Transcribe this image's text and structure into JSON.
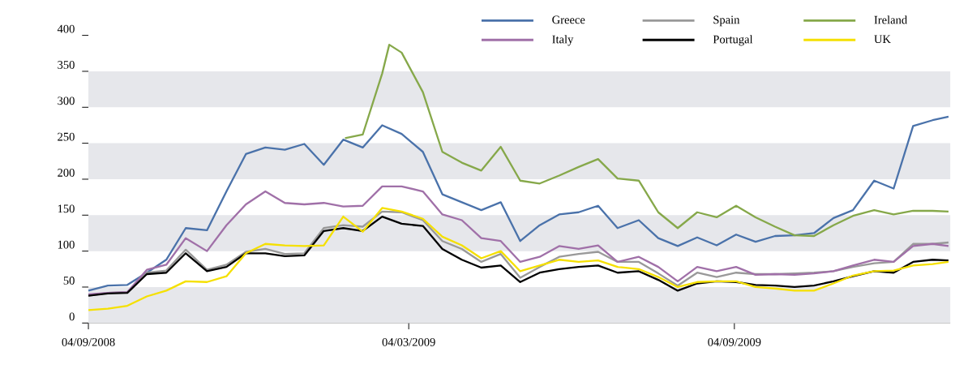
{
  "chart_data": {
    "type": "line",
    "x": [
      "2008-09-04",
      "2008-09-15",
      "2008-09-26",
      "2008-10-07",
      "2008-10-18",
      "2008-10-29",
      "2008-11-10",
      "2008-11-21",
      "2008-12-02",
      "2008-12-13",
      "2008-12-24",
      "2009-01-04",
      "2009-01-15",
      "2009-01-26",
      "2009-02-06",
      "2009-02-17",
      "2009-02-28",
      "2009-03-12",
      "2009-03-23",
      "2009-04-03",
      "2009-04-14",
      "2009-04-25",
      "2009-05-06",
      "2009-05-17",
      "2009-05-28",
      "2009-06-08",
      "2009-06-19",
      "2009-06-30",
      "2009-07-12",
      "2009-07-23",
      "2009-08-03",
      "2009-08-14",
      "2009-08-25",
      "2009-09-05",
      "2009-09-16",
      "2009-09-27",
      "2009-10-08",
      "2009-10-19",
      "2009-10-30",
      "2009-11-10",
      "2009-11-22",
      "2009-12-03",
      "2009-12-14",
      "2009-12-25",
      "2010-01-03"
    ],
    "series": [
      {
        "name": "Greece",
        "color": "#4a72aa",
        "values": [
          45,
          52,
          53,
          70,
          88,
          132,
          129,
          183,
          235,
          244,
          241,
          249,
          220,
          255,
          244,
          275,
          263,
          238,
          179,
          168,
          157,
          168,
          114,
          136,
          151,
          154,
          163,
          132,
          143,
          118,
          107,
          119,
          108,
          123,
          113,
          121,
          122,
          125,
          146,
          157,
          198,
          187,
          274,
          282,
          287
        ]
      },
      {
        "name": "Spain",
        "color": "#999999",
        "values": [
          38,
          42,
          43,
          70,
          73,
          102,
          74,
          81,
          99,
          103,
          96,
          97,
          132,
          136,
          134,
          155,
          154,
          143,
          114,
          103,
          85,
          96,
          63,
          78,
          92,
          96,
          99,
          85,
          85,
          69,
          52,
          70,
          64,
          70,
          68,
          68,
          69,
          70,
          72,
          78,
          83,
          85,
          110,
          110,
          112
        ]
      },
      {
        "name": "Ireland",
        "color": "#86a84a",
        "x": [
          "2009-01-27",
          "2009-02-06",
          "2009-02-17",
          "2009-02-21",
          "2009-02-28",
          "2009-03-12",
          "2009-03-23",
          "2009-04-03",
          "2009-04-14",
          "2009-04-25",
          "2009-05-06",
          "2009-05-17",
          "2009-05-28",
          "2009-06-08",
          "2009-06-19",
          "2009-06-30",
          "2009-07-12",
          "2009-07-23",
          "2009-08-03",
          "2009-08-14",
          "2009-08-25",
          "2009-09-05",
          "2009-09-16",
          "2009-09-27",
          "2009-10-08",
          "2009-10-19",
          "2009-10-30",
          "2009-11-10",
          "2009-11-22",
          "2009-12-03",
          "2009-12-14",
          "2009-12-25",
          "2010-01-03"
        ],
        "values": [
          257,
          262,
          347,
          387,
          376,
          321,
          238,
          223,
          212,
          245,
          198,
          194,
          205,
          217,
          228,
          201,
          198,
          154,
          132,
          154,
          147,
          163,
          147,
          134,
          122,
          121,
          136,
          149,
          157,
          151,
          156,
          156,
          155
        ]
      },
      {
        "name": "Italy",
        "color": "#a070a8",
        "values": [
          40,
          42,
          43,
          74,
          81,
          118,
          100,
          136,
          165,
          183,
          167,
          165,
          167,
          162,
          163,
          190,
          190,
          183,
          151,
          143,
          118,
          114,
          85,
          92,
          107,
          103,
          108,
          85,
          92,
          78,
          58,
          78,
          72,
          78,
          67,
          68,
          67,
          69,
          72,
          80,
          88,
          85,
          107,
          110,
          107
        ]
      },
      {
        "name": "Portugal",
        "color": "#000000",
        "values": [
          38,
          41,
          42,
          68,
          70,
          97,
          72,
          78,
          97,
          97,
          93,
          94,
          128,
          132,
          128,
          148,
          138,
          135,
          103,
          88,
          77,
          80,
          57,
          70,
          75,
          78,
          80,
          70,
          72,
          60,
          45,
          55,
          58,
          57,
          53,
          52,
          50,
          52,
          58,
          65,
          72,
          70,
          85,
          88,
          87
        ]
      },
      {
        "name": "UK",
        "color": "#f5e000",
        "values": [
          18,
          20,
          24,
          37,
          45,
          58,
          57,
          65,
          97,
          110,
          108,
          107,
          108,
          148,
          127,
          160,
          155,
          145,
          120,
          108,
          90,
          100,
          72,
          80,
          88,
          85,
          87,
          78,
          75,
          64,
          50,
          57,
          58,
          58,
          50,
          48,
          45,
          45,
          55,
          66,
          72,
          73,
          80,
          82,
          85
        ]
      }
    ],
    "xlim": [
      "2008-09-04",
      "2010-01-04"
    ],
    "xticks": [
      {
        "value": "2008-09-04",
        "label": "04/09/2008"
      },
      {
        "value": "2009-03-04",
        "label": "04/03/2009"
      },
      {
        "value": "2009-09-04",
        "label": "04/09/2009"
      }
    ],
    "ylim": [
      0,
      400
    ],
    "yticks": [
      0,
      50,
      100,
      150,
      200,
      250,
      300,
      350,
      400
    ],
    "bands": [
      {
        "axis": "y",
        "from": 0,
        "to": 50,
        "color": "#e6e7eb"
      },
      {
        "axis": "y",
        "from": 100,
        "to": 150,
        "color": "#e6e7eb"
      },
      {
        "axis": "y",
        "from": 200,
        "to": 250,
        "color": "#e6e7eb"
      },
      {
        "axis": "y",
        "from": 300,
        "to": 350,
        "color": "#e6e7eb"
      }
    ],
    "legend": "top right"
  }
}
